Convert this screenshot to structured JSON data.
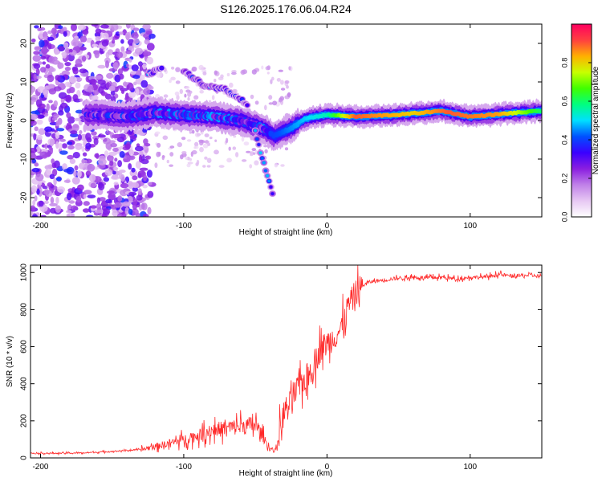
{
  "title": "S126.2025.176.06.04.R24",
  "chart_data": [
    {
      "type": "heatmap",
      "xlabel": "Height of straight line (km)",
      "ylabel": "Frequency (Hz)",
      "xlim": [
        -207,
        150
      ],
      "ylim": [
        -25,
        25
      ],
      "xticks": [
        -200,
        -100,
        0,
        100
      ],
      "yticks": [
        -20,
        -10,
        0,
        10,
        20
      ],
      "colorbar": {
        "label": "Normalized spectral amplitude",
        "range": [
          0.0,
          1.0
        ],
        "ticks": [
          0.0,
          0.2,
          0.4,
          0.6,
          0.8
        ],
        "tick_labels": [
          "0.0",
          "0.2",
          "0.4",
          "0.6",
          "0.8"
        ],
        "colors": [
          "#ffffff",
          "#e7c8f3",
          "#c080e8",
          "#8a1ee0",
          "#3a00ff",
          "#0050ff",
          "#00e0ff",
          "#00ff80",
          "#40ff00",
          "#c8ff00",
          "#ffb000",
          "#ff4040",
          "#ff0060"
        ]
      },
      "ridge": {
        "description_points": [
          {
            "x": -165,
            "y": 1.5
          },
          {
            "x": -140,
            "y": 1.0
          },
          {
            "x": -120,
            "y": 2.0
          },
          {
            "x": -100,
            "y": 1.5
          },
          {
            "x": -80,
            "y": 1.0
          },
          {
            "x": -60,
            "y": 0.0
          },
          {
            "x": -45,
            "y": -2.0
          },
          {
            "x": -37,
            "y": -4.0
          },
          {
            "x": -25,
            "y": -2.0
          },
          {
            "x": -15,
            "y": 0.5
          },
          {
            "x": 0,
            "y": 1.5
          },
          {
            "x": 20,
            "y": 1.0
          },
          {
            "x": 50,
            "y": 1.5
          },
          {
            "x": 80,
            "y": 2.5
          },
          {
            "x": 100,
            "y": 1.0
          },
          {
            "x": 125,
            "y": 1.8
          },
          {
            "x": 150,
            "y": 2.5
          }
        ],
        "peak_amplitude": [
          {
            "x": -160,
            "y": 0.35
          },
          {
            "x": -100,
            "y": 0.45
          },
          {
            "x": -37,
            "y": 0.4
          },
          {
            "x": 0,
            "y": 0.55
          },
          {
            "x": 20,
            "y": 0.9
          },
          {
            "x": 60,
            "y": 0.8
          },
          {
            "x": 85,
            "y": 0.9
          },
          {
            "x": 120,
            "y": 0.85
          },
          {
            "x": 150,
            "y": 0.6
          }
        ]
      },
      "side_branches": [
        {
          "points": [
            {
              "x": -125,
              "y": 12
            },
            {
              "x": -115,
              "y": 13.5
            }
          ]
        },
        {
          "points": [
            {
              "x": -100,
              "y": 13
            },
            {
              "x": -85,
              "y": 9
            },
            {
              "x": -70,
              "y": 8
            },
            {
              "x": -55,
              "y": 4
            }
          ]
        },
        {
          "points": [
            {
              "x": -50,
              "y": -3
            },
            {
              "x": -45,
              "y": -10
            },
            {
              "x": -40,
              "y": -16
            },
            {
              "x": -37,
              "y": -20.5
            }
          ]
        }
      ]
    },
    {
      "type": "line",
      "xlabel": "Height of straight line (km)",
      "ylabel": "SNR (10 * v/v)",
      "xlim": [
        -207,
        150
      ],
      "ylim": [
        0,
        1040
      ],
      "xticks": [
        -200,
        -100,
        0,
        100
      ],
      "yticks": [
        0,
        200,
        400,
        600,
        800,
        1000
      ],
      "color": "#ff2a2a",
      "series": [
        {
          "x": [
            -207,
            -190,
            -170,
            -150,
            -130,
            -115,
            -100,
            -90,
            -80,
            -70,
            -60,
            -50,
            -45,
            -40,
            -36,
            -30,
            -25,
            -20,
            -15,
            -10,
            -5,
            0,
            5,
            10,
            15,
            20,
            25,
            30,
            40,
            50,
            60,
            70,
            80,
            90,
            100,
            110,
            120,
            130,
            140,
            150
          ],
          "values": [
            25,
            25,
            27,
            35,
            45,
            70,
            100,
            120,
            150,
            160,
            170,
            180,
            120,
            50,
            40,
            250,
            300,
            380,
            430,
            480,
            580,
            620,
            650,
            700,
            820,
            890,
            930,
            950,
            960,
            970,
            975,
            970,
            975,
            965,
            975,
            975,
            990,
            980,
            985,
            980
          ]
        }
      ]
    }
  ]
}
